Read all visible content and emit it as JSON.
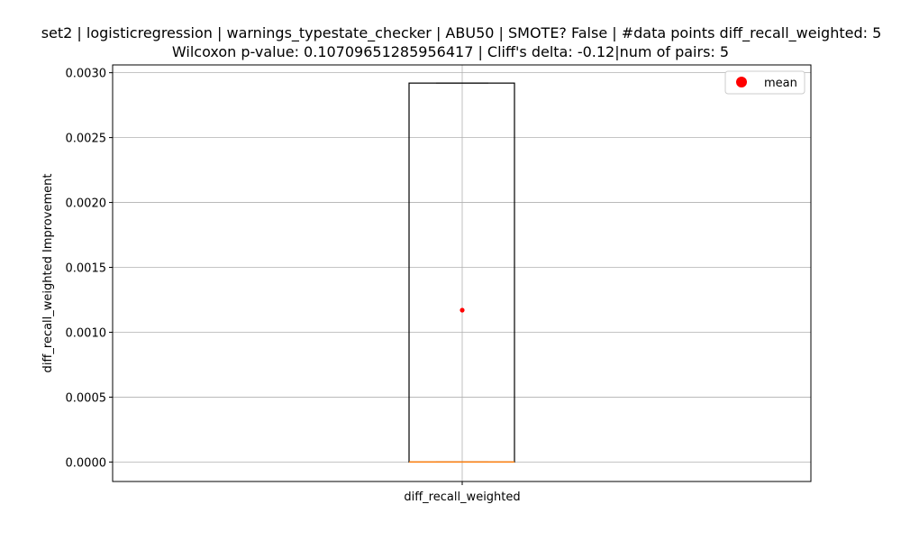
{
  "chart_data": {
    "type": "box",
    "title_lines": [
      "set2 | logisticregression | warnings_typestate_checker | ABU50 | SMOTE? False | #data points diff_recall_weighted: 5",
      "Wilcoxon p-value: 0.10709651285956417 | Cliff's delta: -0.12|num of pairs: 5"
    ],
    "xlabel": "",
    "ylabel": "diff_recall_weighted Improvement",
    "categories": [
      "diff_recall_weighted"
    ],
    "ylim": [
      -0.00015,
      0.00306
    ],
    "yticks": [
      "0.0000",
      "0.0005",
      "0.0010",
      "0.0015",
      "0.0020",
      "0.0025",
      "0.0030"
    ],
    "ytick_values": [
      0,
      0.0005,
      0.001,
      0.0015,
      0.002,
      0.0025,
      0.003
    ],
    "grid": true,
    "legend": {
      "position": "top-right",
      "entries": [
        {
          "label": "mean",
          "color": "#ff0000",
          "marker": "circle"
        }
      ]
    },
    "box": {
      "min": 0,
      "q1": 0,
      "median": 0,
      "q3": 0.00292,
      "max": 0.00292,
      "mean": 0.00117
    },
    "colors": {
      "box": "#000000",
      "median": "#ff7f0e",
      "mean": "#ff0000",
      "grid": "#b0b0b0"
    }
  }
}
